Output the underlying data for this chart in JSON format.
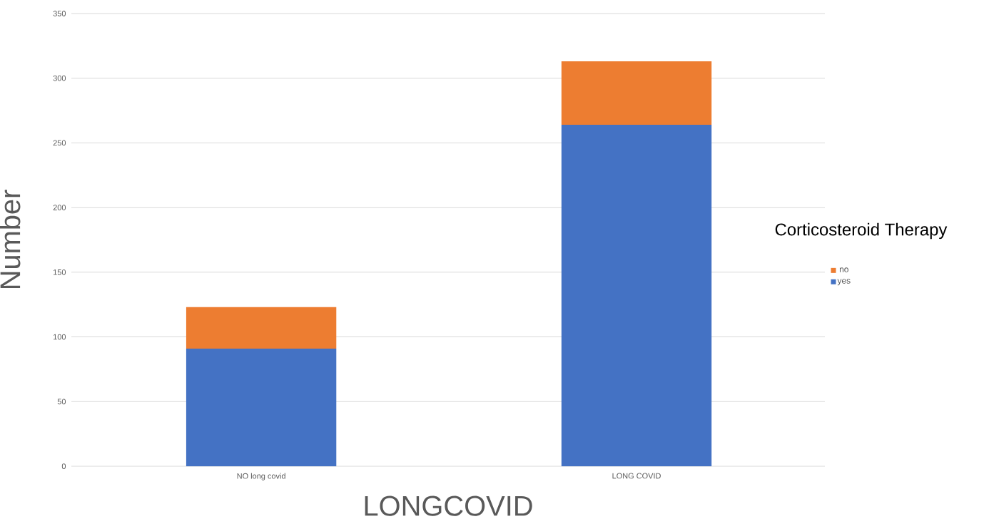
{
  "chart_data": {
    "type": "bar",
    "stacked": true,
    "xlabel": "LONGCOVID",
    "ylabel": "Number",
    "legend_title": "Corticosteroid Therapy",
    "categories": [
      "NO long covid",
      "LONG COVID"
    ],
    "series": [
      {
        "name": "yes",
        "color": "#4472c4",
        "values": [
          91,
          264
        ]
      },
      {
        "name": "no",
        "color": "#ed7d31",
        "values": [
          32,
          49
        ]
      }
    ],
    "ylim": [
      0,
      350
    ],
    "yticks": [
      0,
      50,
      100,
      150,
      200,
      250,
      300,
      350
    ],
    "grid": "y",
    "legend": "right"
  }
}
